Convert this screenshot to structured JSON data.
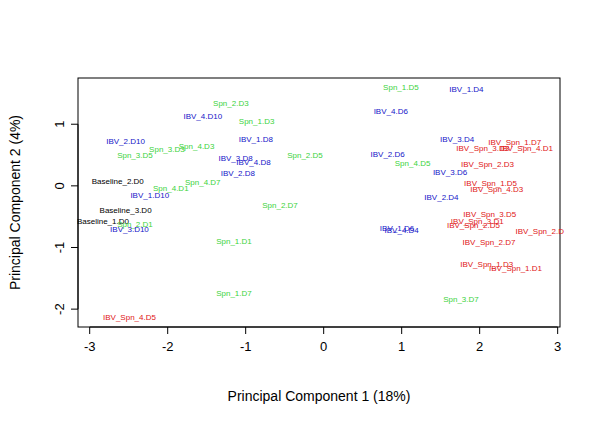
{
  "chart_data": {
    "type": "scatter",
    "x_label": "Principal Component 1 (18%)",
    "y_label": "Principal Component 2 (4%)",
    "xlim": [
      -3.15,
      3.03
    ],
    "ylim": [
      -2.29,
      1.75
    ],
    "xticks": [
      -3,
      -2,
      -1,
      0,
      1,
      2,
      3
    ],
    "yticks": [
      -2,
      -1,
      0,
      1
    ],
    "marker": "text",
    "labels": [
      "Spn_1.D5",
      "IBV_1.D4",
      "Spn_2.D3",
      "IBV_4.D10",
      "Spn_1.D3",
      "IBV_4.D6",
      "IBV_1.D8",
      "IBV_3.D4",
      "IBV_Spn_1.D7",
      "IBV_2.D10",
      "Spn_4.D3",
      "Spn_3.D3",
      "Spn_3.D5",
      "IBV_Spn_3.D3",
      "IBV_Spn_4.D1",
      "IBV_2.D6",
      "Spn_2.D5",
      "IBV_3.D8",
      "IBV_4.D8",
      "Spn_4.D5",
      "IBV_Spn_2.D3",
      "IBV_3.D6",
      "IBV_2.D8",
      "Baseline_2.D0",
      "IBV_Spn_1.D5",
      "Spn_4.D1",
      "Spn_4.D7",
      "IBV_Spn_4.D3",
      "IBV_1.D10",
      "IBV_2.D4",
      "Spn_2.D7",
      "Baseline_3.D0",
      "IBV_Spn_3.D5",
      "Baseline_1.D0",
      "Spn_2.D1",
      "IBV_3.D10",
      "IBV_1.D6",
      "IBV_4.D4",
      "IBV_Spn_3.D1",
      "IBV_Spn_2.D5",
      "IBV_Spn_2.D",
      "Spn_1.D1",
      "IBV_Spn_2.D7",
      "IBV_Spn_1.D3",
      "IBV_Spn_1.D1",
      "Spn_1.D7",
      "Spn_3.D7",
      "IBV_Spn_4.D5"
    ],
    "x": [
      0.99,
      1.83,
      -1.19,
      -1.55,
      -0.86,
      0.86,
      -0.87,
      1.71,
      2.45,
      -2.54,
      -1.63,
      -2.01,
      -2.42,
      2.04,
      2.6,
      0.82,
      -0.24,
      -1.13,
      -0.9,
      1.14,
      2.1,
      1.62,
      -1.1,
      -2.64,
      2.14,
      -1.96,
      -1.55,
      2.22,
      -2.23,
      1.51,
      -0.56,
      -2.54,
      2.13,
      -2.83,
      -2.42,
      -2.49,
      0.94,
      1.0,
      1.97,
      1.92,
      2.77,
      -1.15,
      2.12,
      2.09,
      2.46,
      -1.15,
      1.76,
      -2.49
    ],
    "values": [
      1.59,
      1.57,
      1.33,
      1.13,
      1.05,
      1.2,
      0.76,
      0.76,
      0.71,
      0.72,
      0.64,
      0.59,
      0.5,
      0.61,
      0.61,
      0.51,
      0.5,
      0.45,
      0.38,
      0.37,
      0.35,
      0.22,
      0.2,
      0.07,
      0.04,
      -0.04,
      0.06,
      -0.06,
      -0.15,
      -0.19,
      -0.32,
      -0.4,
      -0.46,
      -0.58,
      -0.63,
      -0.71,
      -0.69,
      -0.72,
      -0.58,
      -0.64,
      -0.74,
      -0.9,
      -0.92,
      -1.28,
      -1.34,
      -1.75,
      -1.85,
      -2.14
    ],
    "colors": [
      "#3bd33b",
      "#1515c8",
      "#3bd33b",
      "#1515c8",
      "#3bd33b",
      "#1515c8",
      "#1515c8",
      "#1515c8",
      "#e01515",
      "#1515c8",
      "#3bd33b",
      "#3bd33b",
      "#3bd33b",
      "#e01515",
      "#e01515",
      "#1515c8",
      "#3bd33b",
      "#1515c8",
      "#1515c8",
      "#3bd33b",
      "#e01515",
      "#1515c8",
      "#1515c8",
      "#000000",
      "#e01515",
      "#3bd33b",
      "#3bd33b",
      "#e01515",
      "#1515c8",
      "#1515c8",
      "#3bd33b",
      "#000000",
      "#e01515",
      "#000000",
      "#3bd33b",
      "#1515c8",
      "#1515c8",
      "#1515c8",
      "#e01515",
      "#e01515",
      "#e01515",
      "#3bd33b",
      "#e01515",
      "#e01515",
      "#e01515",
      "#3bd33b",
      "#3bd33b",
      "#e01515"
    ]
  }
}
